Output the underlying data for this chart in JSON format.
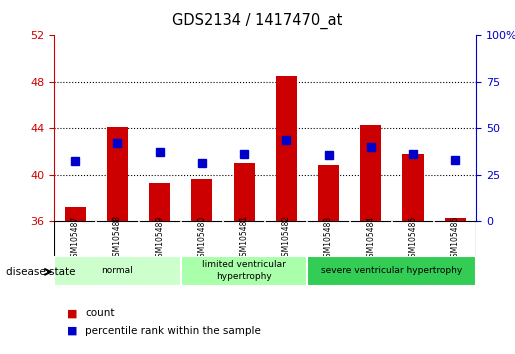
{
  "title": "GDS2134 / 1417470_at",
  "samples": [
    "GSM105487",
    "GSM105488",
    "GSM105489",
    "GSM105480",
    "GSM105481",
    "GSM105482",
    "GSM105483",
    "GSM105484",
    "GSM105485",
    "GSM105486"
  ],
  "bar_values": [
    37.2,
    44.1,
    39.3,
    39.6,
    41.0,
    48.5,
    40.8,
    44.3,
    41.8,
    36.3
  ],
  "bar_base": 36,
  "percentile_values": [
    41.2,
    42.7,
    42.0,
    41.0,
    41.8,
    43.0,
    41.7,
    42.4,
    41.8,
    41.3
  ],
  "ylim_left": [
    36,
    52
  ],
  "ylim_right": [
    0,
    100
  ],
  "yticks_left": [
    36,
    40,
    44,
    48,
    52
  ],
  "yticks_right": [
    0,
    25,
    50,
    75,
    100
  ],
  "ytick_labels_right": [
    "0",
    "25",
    "50",
    "75",
    "100%"
  ],
  "bar_color": "#cc0000",
  "percentile_color": "#0000cc",
  "groups": [
    {
      "label": "normal",
      "start": 0,
      "end": 3,
      "color": "#ccffcc"
    },
    {
      "label": "limited ventricular\nhypertrophy",
      "start": 3,
      "end": 6,
      "color": "#aaffaa"
    },
    {
      "label": "severe ventricular hypertrophy",
      "start": 6,
      "end": 10,
      "color": "#33cc55"
    }
  ],
  "disease_state_label": "disease state",
  "legend_count_label": "count",
  "legend_percentile_label": "percentile rank within the sample",
  "background_color": "#ffffff",
  "tick_label_color_left": "#cc0000",
  "tick_label_color_right": "#0000cc",
  "bar_width": 0.5,
  "percentile_marker_size": 6,
  "grid_yticks": [
    40,
    44,
    48
  ]
}
